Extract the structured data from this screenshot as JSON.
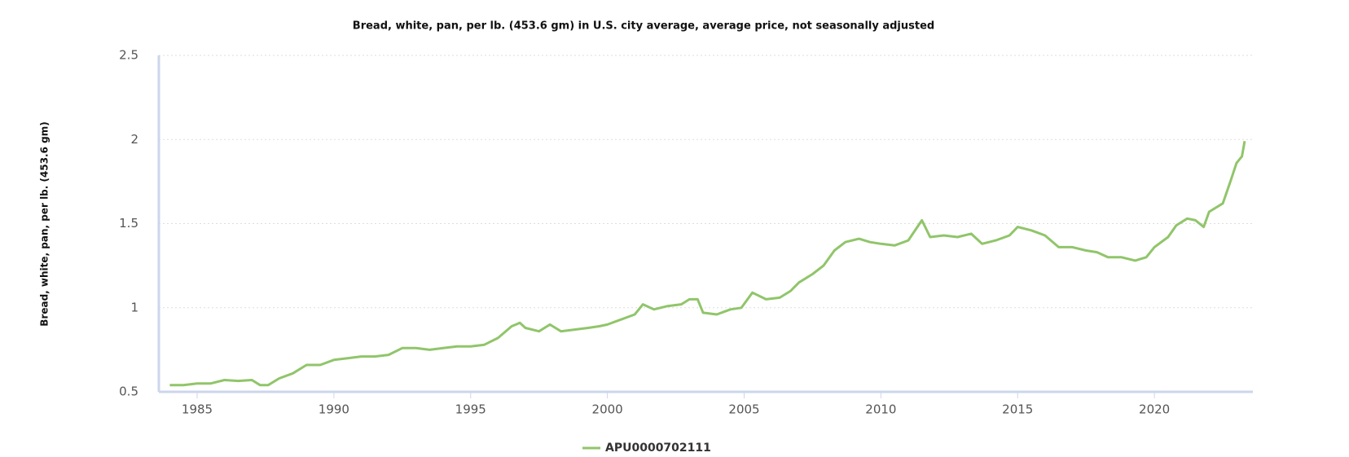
{
  "chart_data": {
    "type": "line",
    "title": "Bread, white, pan, per lb. (453.6 gm) in U.S. city average, average price, not seasonally adjusted",
    "y_label": "Bread, white, pan, per lb. (453.6 gm)",
    "xlim": [
      1983.6,
      2023.6
    ],
    "xticks": [
      1985,
      1990,
      1995,
      2000,
      2005,
      2010,
      2015,
      2020
    ],
    "ylim": [
      0.5,
      2.5
    ],
    "yticks": [
      0.5,
      1,
      1.5,
      2,
      2.5
    ],
    "grid": true,
    "x": [
      1984.0,
      1984.5,
      1985.0,
      1985.5,
      1986.0,
      1986.5,
      1987.0,
      1987.3,
      1987.6,
      1988.0,
      1988.5,
      1989.0,
      1989.5,
      1990.0,
      1990.5,
      1991.0,
      1991.5,
      1992.0,
      1992.5,
      1993.0,
      1993.5,
      1994.0,
      1994.5,
      1995.0,
      1995.5,
      1996.0,
      1996.5,
      1996.8,
      1997.0,
      1997.5,
      1997.9,
      1998.3,
      1998.8,
      1999.3,
      1999.7,
      2000.0,
      2000.5,
      2001.0,
      2001.3,
      2001.7,
      2002.2,
      2002.7,
      2003.0,
      2003.3,
      2003.5,
      2004.0,
      2004.5,
      2004.9,
      2005.3,
      2005.8,
      2006.3,
      2006.7,
      2007.0,
      2007.5,
      2007.9,
      2008.3,
      2008.7,
      2009.2,
      2009.6,
      2010.0,
      2010.5,
      2011.0,
      2011.5,
      2011.8,
      2012.3,
      2012.8,
      2013.3,
      2013.7,
      2014.2,
      2014.7,
      2015.0,
      2015.5,
      2016.0,
      2016.5,
      2017.0,
      2017.5,
      2017.9,
      2018.3,
      2018.8,
      2019.3,
      2019.7,
      2020.0,
      2020.5,
      2020.8,
      2021.2,
      2021.5,
      2021.8,
      2022.0,
      2022.5,
      2022.8,
      2023.0,
      2023.2,
      2023.3
    ],
    "series": [
      {
        "name": "APU0000702111",
        "color": "#90c56a",
        "values": [
          0.54,
          0.54,
          0.55,
          0.55,
          0.57,
          0.565,
          0.57,
          0.54,
          0.54,
          0.58,
          0.61,
          0.66,
          0.66,
          0.69,
          0.7,
          0.71,
          0.71,
          0.72,
          0.76,
          0.76,
          0.75,
          0.76,
          0.77,
          0.77,
          0.78,
          0.82,
          0.89,
          0.91,
          0.88,
          0.86,
          0.9,
          0.86,
          0.87,
          0.88,
          0.89,
          0.9,
          0.93,
          0.96,
          1.02,
          0.99,
          1.01,
          1.02,
          1.05,
          1.05,
          0.97,
          0.96,
          0.99,
          1.0,
          1.09,
          1.05,
          1.06,
          1.1,
          1.15,
          1.2,
          1.25,
          1.34,
          1.39,
          1.41,
          1.39,
          1.38,
          1.37,
          1.4,
          1.52,
          1.42,
          1.43,
          1.42,
          1.44,
          1.38,
          1.4,
          1.43,
          1.48,
          1.46,
          1.43,
          1.36,
          1.36,
          1.34,
          1.33,
          1.3,
          1.3,
          1.28,
          1.3,
          1.36,
          1.42,
          1.49,
          1.53,
          1.52,
          1.48,
          1.57,
          1.62,
          1.76,
          1.86,
          1.9,
          1.99
        ]
      }
    ]
  }
}
